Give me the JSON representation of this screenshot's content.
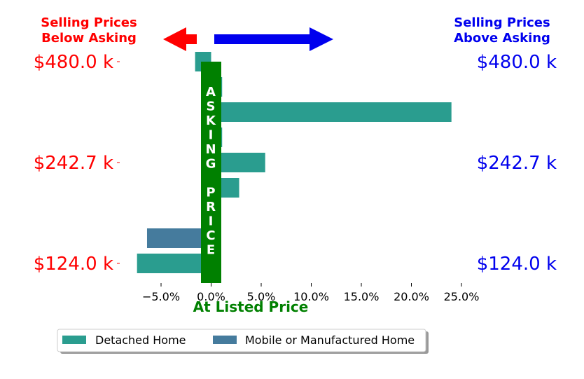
{
  "header": {
    "left_title_line1": "Selling Prices",
    "left_title_line2": "Below Asking",
    "right_title_line1": "Selling Prices",
    "right_title_line2": "Above Asking"
  },
  "colors": {
    "below": "#ff0000",
    "above": "#0000ee",
    "asking_band": "#008000",
    "detached": "#2a9d8f",
    "mobile": "#457b9d"
  },
  "asking_band_text": [
    "A",
    "S",
    "K",
    "I",
    "N",
    "G",
    "",
    "P",
    "R",
    "I",
    "C",
    "E"
  ],
  "at_listed_label": "At Listed Price",
  "chart_data": {
    "type": "bar",
    "orientation": "horizontal",
    "xlabel": "",
    "ylabel": "",
    "xlim": [
      -7.5,
      25.0
    ],
    "x_tick_labels": [
      "−5.0%",
      "0.0%",
      "5.0%",
      "10.0%",
      "15.0%",
      "20.0%",
      "25.0%"
    ],
    "x_ticks": [
      -5,
      0,
      5,
      10,
      15,
      20,
      25
    ],
    "price_tick_labels": [
      "$480.0 k",
      "$242.7 k",
      "$124.0 k"
    ],
    "price_tick_ranks": [
      8,
      4,
      0
    ],
    "series": [
      {
        "name": "Detached Home",
        "color": "#2a9d8f",
        "bars": [
          {
            "rank": 0,
            "value": -7.4
          },
          {
            "rank": 3,
            "value": 2.8
          },
          {
            "rank": 4,
            "value": 5.4
          },
          {
            "rank": 5,
            "value": 1.1
          },
          {
            "rank": 6,
            "value": 24.0
          },
          {
            "rank": 7,
            "value": 1.1
          },
          {
            "rank": 8,
            "value": -1.6
          }
        ]
      },
      {
        "name": "Mobile or Manufactured Home",
        "color": "#457b9d",
        "bars": [
          {
            "rank": 1,
            "value": -6.4
          }
        ]
      }
    ],
    "legend": [
      "Detached Home",
      "Mobile or Manufactured Home"
    ],
    "legend_placement": "bottom-left"
  }
}
